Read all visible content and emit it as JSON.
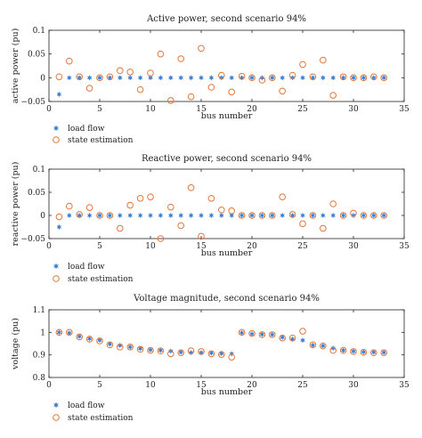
{
  "colors": {
    "load_flow": "#3d7fd1",
    "state_estimation": "#e0773a",
    "axis": "#222222"
  },
  "chart_data": [
    {
      "type": "scatter",
      "title": "Active power, second scenario 94%",
      "xlabel": "bus number",
      "ylabel": "active power (pu)",
      "xlim": [
        0,
        35
      ],
      "ylim": [
        -0.05,
        0.1
      ],
      "xticks": [
        0,
        5,
        10,
        15,
        20,
        25,
        30,
        35
      ],
      "yticks": [
        -0.05,
        0,
        0.05,
        0.1
      ],
      "ytick_labels": [
        "−0.05",
        "0",
        "0.05",
        "0.1"
      ],
      "legend": "bottom-left, below axes",
      "x": [
        1,
        2,
        3,
        4,
        5,
        6,
        7,
        8,
        9,
        10,
        11,
        12,
        13,
        14,
        15,
        16,
        17,
        18,
        19,
        20,
        21,
        22,
        23,
        24,
        25,
        26,
        27,
        28,
        29,
        30,
        31,
        32,
        33
      ],
      "series": [
        {
          "name": "load flow",
          "marker": "star",
          "values": [
            -0.035,
            0,
            0,
            0,
            0,
            0,
            0,
            0,
            0,
            0,
            0,
            0,
            0,
            0,
            0,
            0,
            0,
            0,
            0,
            0,
            0,
            0,
            0,
            0,
            0,
            0,
            0,
            0,
            0,
            0,
            0,
            0,
            0
          ]
        },
        {
          "name": "state estimation",
          "marker": "circle",
          "values": [
            0.002,
            0.035,
            0.002,
            -0.022,
            0,
            0.002,
            0.015,
            0.012,
            -0.025,
            0.01,
            0.05,
            -0.048,
            0.04,
            -0.04,
            0.062,
            -0.02,
            0.005,
            -0.03,
            0.003,
            0,
            -0.005,
            0,
            -0.028,
            0.005,
            0.028,
            0.002,
            0.037,
            -0.037,
            0.002,
            0,
            0,
            0.002,
            0
          ]
        }
      ]
    },
    {
      "type": "scatter",
      "title": "Reactive power, second scenario 94%",
      "xlabel": "bus number",
      "ylabel": "reactive power (pu)",
      "xlim": [
        0,
        35
      ],
      "ylim": [
        -0.05,
        0.1
      ],
      "xticks": [
        0,
        5,
        10,
        15,
        20,
        25,
        30,
        35
      ],
      "yticks": [
        -0.05,
        0,
        0.05,
        0.1
      ],
      "ytick_labels": [
        "−0.05",
        "0",
        "0.05",
        "0.1"
      ],
      "legend": "bottom-left, below axes",
      "x": [
        1,
        2,
        3,
        4,
        5,
        6,
        7,
        8,
        9,
        10,
        11,
        12,
        13,
        14,
        15,
        16,
        17,
        18,
        19,
        20,
        21,
        22,
        23,
        24,
        25,
        26,
        27,
        28,
        29,
        30,
        31,
        32,
        33
      ],
      "series": [
        {
          "name": "load flow",
          "marker": "star",
          "values": [
            -0.025,
            0,
            0,
            0,
            0,
            0,
            0,
            0,
            0,
            0,
            0,
            0,
            0,
            0,
            0,
            0,
            0,
            0,
            0,
            0,
            0,
            0,
            0,
            0,
            0,
            0,
            0,
            0,
            0,
            0,
            0,
            0,
            0
          ]
        },
        {
          "name": "state estimation",
          "marker": "circle",
          "values": [
            -0.003,
            0.02,
            0.002,
            0.017,
            0,
            0,
            -0.028,
            0.022,
            0.037,
            0.04,
            -0.05,
            0.018,
            -0.022,
            0.06,
            -0.045,
            0.037,
            0.012,
            0.01,
            0,
            0,
            0,
            0,
            0.04,
            0.002,
            -0.018,
            0,
            -0.028,
            0.025,
            0,
            0.005,
            0,
            0,
            0
          ]
        }
      ]
    },
    {
      "type": "scatter",
      "title": "Voltage magnitude, second scenario 94%",
      "xlabel": "bus number",
      "ylabel": "voltage (pu)",
      "xlim": [
        0,
        35
      ],
      "ylim": [
        0.8,
        1.1
      ],
      "xticks": [
        0,
        5,
        10,
        15,
        20,
        25,
        30,
        35
      ],
      "yticks": [
        0.8,
        0.9,
        1,
        1.1
      ],
      "ytick_labels": [
        "0.8",
        "0.9",
        "1",
        "1.1"
      ],
      "legend": "bottom-left, below axes",
      "x": [
        1,
        2,
        3,
        4,
        5,
        6,
        7,
        8,
        9,
        10,
        11,
        12,
        13,
        14,
        15,
        16,
        17,
        18,
        19,
        20,
        21,
        22,
        23,
        24,
        25,
        26,
        27,
        28,
        29,
        30,
        31,
        32,
        33
      ],
      "series": [
        {
          "name": "load flow",
          "marker": "star",
          "values": [
            1,
            0.997,
            0.982,
            0.972,
            0.965,
            0.948,
            0.942,
            0.935,
            0.928,
            0.922,
            0.92,
            0.917,
            0.912,
            0.91,
            0.91,
            0.908,
            0.906,
            0.905,
            0.998,
            0.993,
            0.991,
            0.99,
            0.978,
            0.97,
            0.965,
            0.943,
            0.94,
            0.93,
            0.92,
            0.916,
            0.913,
            0.912,
            0.911
          ]
        },
        {
          "name": "state estimation",
          "marker": "circle",
          "values": [
            1,
            1,
            0.98,
            0.97,
            0.962,
            0.945,
            0.935,
            0.935,
            0.925,
            0.92,
            0.918,
            0.905,
            0.91,
            0.918,
            0.915,
            0.905,
            0.902,
            0.89,
            1,
            0.995,
            0.99,
            0.99,
            0.975,
            0.975,
            1.005,
            0.945,
            0.94,
            0.92,
            0.92,
            0.915,
            0.912,
            0.91,
            0.91
          ]
        }
      ]
    }
  ]
}
